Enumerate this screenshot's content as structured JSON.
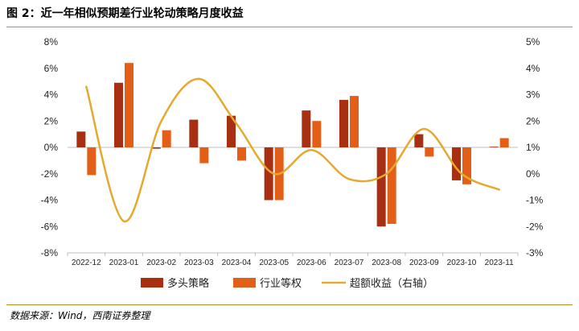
{
  "figure": {
    "title": "图 2：近一年相似预期差行业轮动策略月度收益",
    "source": "数据来源：Wind，西南证券整理"
  },
  "colors": {
    "series1": "#a82f12",
    "series2": "#e35f18",
    "line": "#e5a92c",
    "rule": "#c98a2e",
    "axis": "#bfbfbf"
  },
  "chart_data": {
    "type": "bar",
    "categories": [
      "2022-12",
      "2023-01",
      "2023-02",
      "2023-03",
      "2023-04",
      "2023-05",
      "2023-06",
      "2023-07",
      "2023-08",
      "2023-09",
      "2023-10",
      "2023-11"
    ],
    "series": [
      {
        "name": "多头策略",
        "type": "bar",
        "axis": "left",
        "values": [
          1.2,
          4.9,
          -0.1,
          2.1,
          2.4,
          -4.0,
          2.8,
          3.6,
          -6.0,
          1.0,
          -2.5,
          0.05
        ]
      },
      {
        "name": "行业等权",
        "type": "bar",
        "axis": "left",
        "values": [
          -2.1,
          6.4,
          1.3,
          -1.2,
          -1.0,
          -4.0,
          2.0,
          3.9,
          -5.8,
          -0.7,
          -2.8,
          0.7
        ]
      },
      {
        "name": "超额收益（右轴）",
        "type": "line",
        "smooth": true,
        "axis": "right",
        "values": [
          3.3,
          -1.8,
          2.0,
          3.6,
          1.9,
          0.0,
          0.9,
          -0.2,
          0.0,
          1.7,
          0.0,
          -0.6
        ]
      }
    ],
    "y_left": {
      "min": -8,
      "max": 8,
      "step": 2,
      "tick_labels": [
        "8%",
        "6%",
        "4%",
        "2%",
        "0%",
        "-2%",
        "-4%",
        "-6%",
        "-8%"
      ]
    },
    "y_right": {
      "min": -3,
      "max": 5,
      "step": 1,
      "tick_labels": [
        "5%",
        "4%",
        "3%",
        "2%",
        "1%",
        "0%",
        "-1%",
        "-2%",
        "-3%"
      ]
    },
    "grid": false,
    "legend_position": "bottom"
  }
}
